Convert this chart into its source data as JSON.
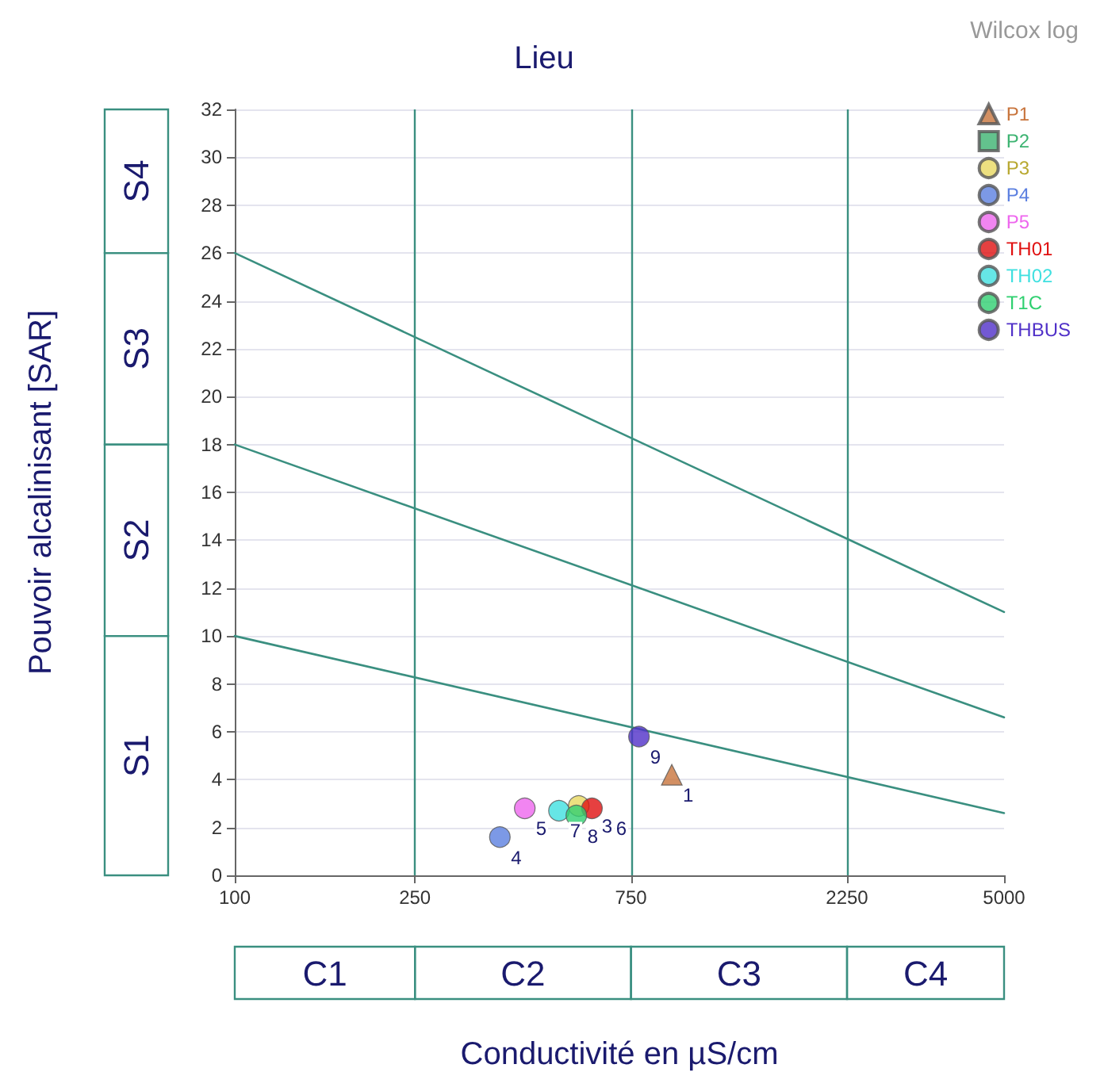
{
  "chart_data": {
    "type": "scatter",
    "title": "Lieu",
    "xlabel": "Conductivité en µS/cm",
    "ylabel": "Pouvoir alcalinisant [SAR]",
    "annotations": [
      "Wilcox log",
      "S1",
      "S2",
      "S3",
      "S4",
      "C1",
      "C2",
      "C3",
      "C4",
      {
        "text": "1",
        "x": 923,
        "y": 4.2
      },
      {
        "text": "3",
        "x": 575,
        "y": 2.9
      },
      {
        "text": "4",
        "x": 385,
        "y": 1.6
      },
      {
        "text": "5",
        "x": 437,
        "y": 2.8
      },
      {
        "text": "6",
        "x": 615,
        "y": 2.8
      },
      {
        "text": "7",
        "x": 520,
        "y": 2.7
      },
      {
        "text": "8",
        "x": 568,
        "y": 2.5
      },
      {
        "text": "9",
        "x": 781,
        "y": 5.8
      }
    ],
    "log": "x",
    "xlim": [
      100,
      5000
    ],
    "xticks": [
      100,
      250,
      750,
      2250,
      5000
    ],
    "ylim": [
      0,
      32
    ],
    "yticks": [
      0,
      2,
      4,
      6,
      8,
      10,
      12,
      14,
      16,
      18,
      20,
      22,
      24,
      26,
      28,
      30,
      32
    ],
    "grid": "y",
    "legend": "top right",
    "series": [
      {
        "name": "P1",
        "color": "#c8743c",
        "marker": "triangle",
        "x": [
          923
        ],
        "values": [
          4.2
        ]
      },
      {
        "name": "P2",
        "color": "#3cb371",
        "marker": "square",
        "x": [
          null
        ],
        "values": [
          null
        ]
      },
      {
        "name": "P3",
        "color": "#e8d860",
        "marker": "circle",
        "x": [
          575
        ],
        "values": [
          2.9
        ]
      },
      {
        "name": "P4",
        "color": "#5b7fe0",
        "marker": "circle",
        "x": [
          385
        ],
        "values": [
          1.6
        ]
      },
      {
        "name": "P5",
        "color": "#ee66ee",
        "marker": "circle",
        "x": [
          437
        ],
        "values": [
          2.8
        ]
      },
      {
        "name": "TH01",
        "color": "#e01010",
        "marker": "circle",
        "x": [
          615
        ],
        "values": [
          2.8
        ]
      },
      {
        "name": "TH02",
        "color": "#40e0e0",
        "marker": "circle",
        "x": [
          520
        ],
        "values": [
          2.7
        ]
      },
      {
        "name": "T1C",
        "color": "#30d070",
        "marker": "circle",
        "x": [
          568
        ],
        "values": [
          2.5
        ]
      },
      {
        "name": "THBUS",
        "color": "#5030c8",
        "marker": "circle",
        "x": [
          781
        ],
        "values": [
          5.8
        ]
      },
      {
        "type": "line",
        "color": "#3a8f80",
        "marker": "none",
        "line_style": "solid",
        "x": [
          100,
          5000
        ],
        "values": [
          26,
          11
        ]
      },
      {
        "type": "line",
        "color": "#3a8f80",
        "marker": "none",
        "line_style": "solid",
        "x": [
          100,
          5000
        ],
        "values": [
          18,
          6.6
        ]
      },
      {
        "type": "line",
        "color": "#3a8f80",
        "marker": "none",
        "line_style": "solid",
        "x": [
          100,
          5000
        ],
        "values": [
          10,
          2.6
        ]
      }
    ],
    "ref_lines": [
      {
        "axis": "x",
        "value": 250,
        "color": "#3a8f80"
      },
      {
        "axis": "x",
        "value": 750,
        "color": "#3a8f80"
      },
      {
        "axis": "x",
        "value": 2250,
        "color": "#3a8f80"
      }
    ]
  }
}
